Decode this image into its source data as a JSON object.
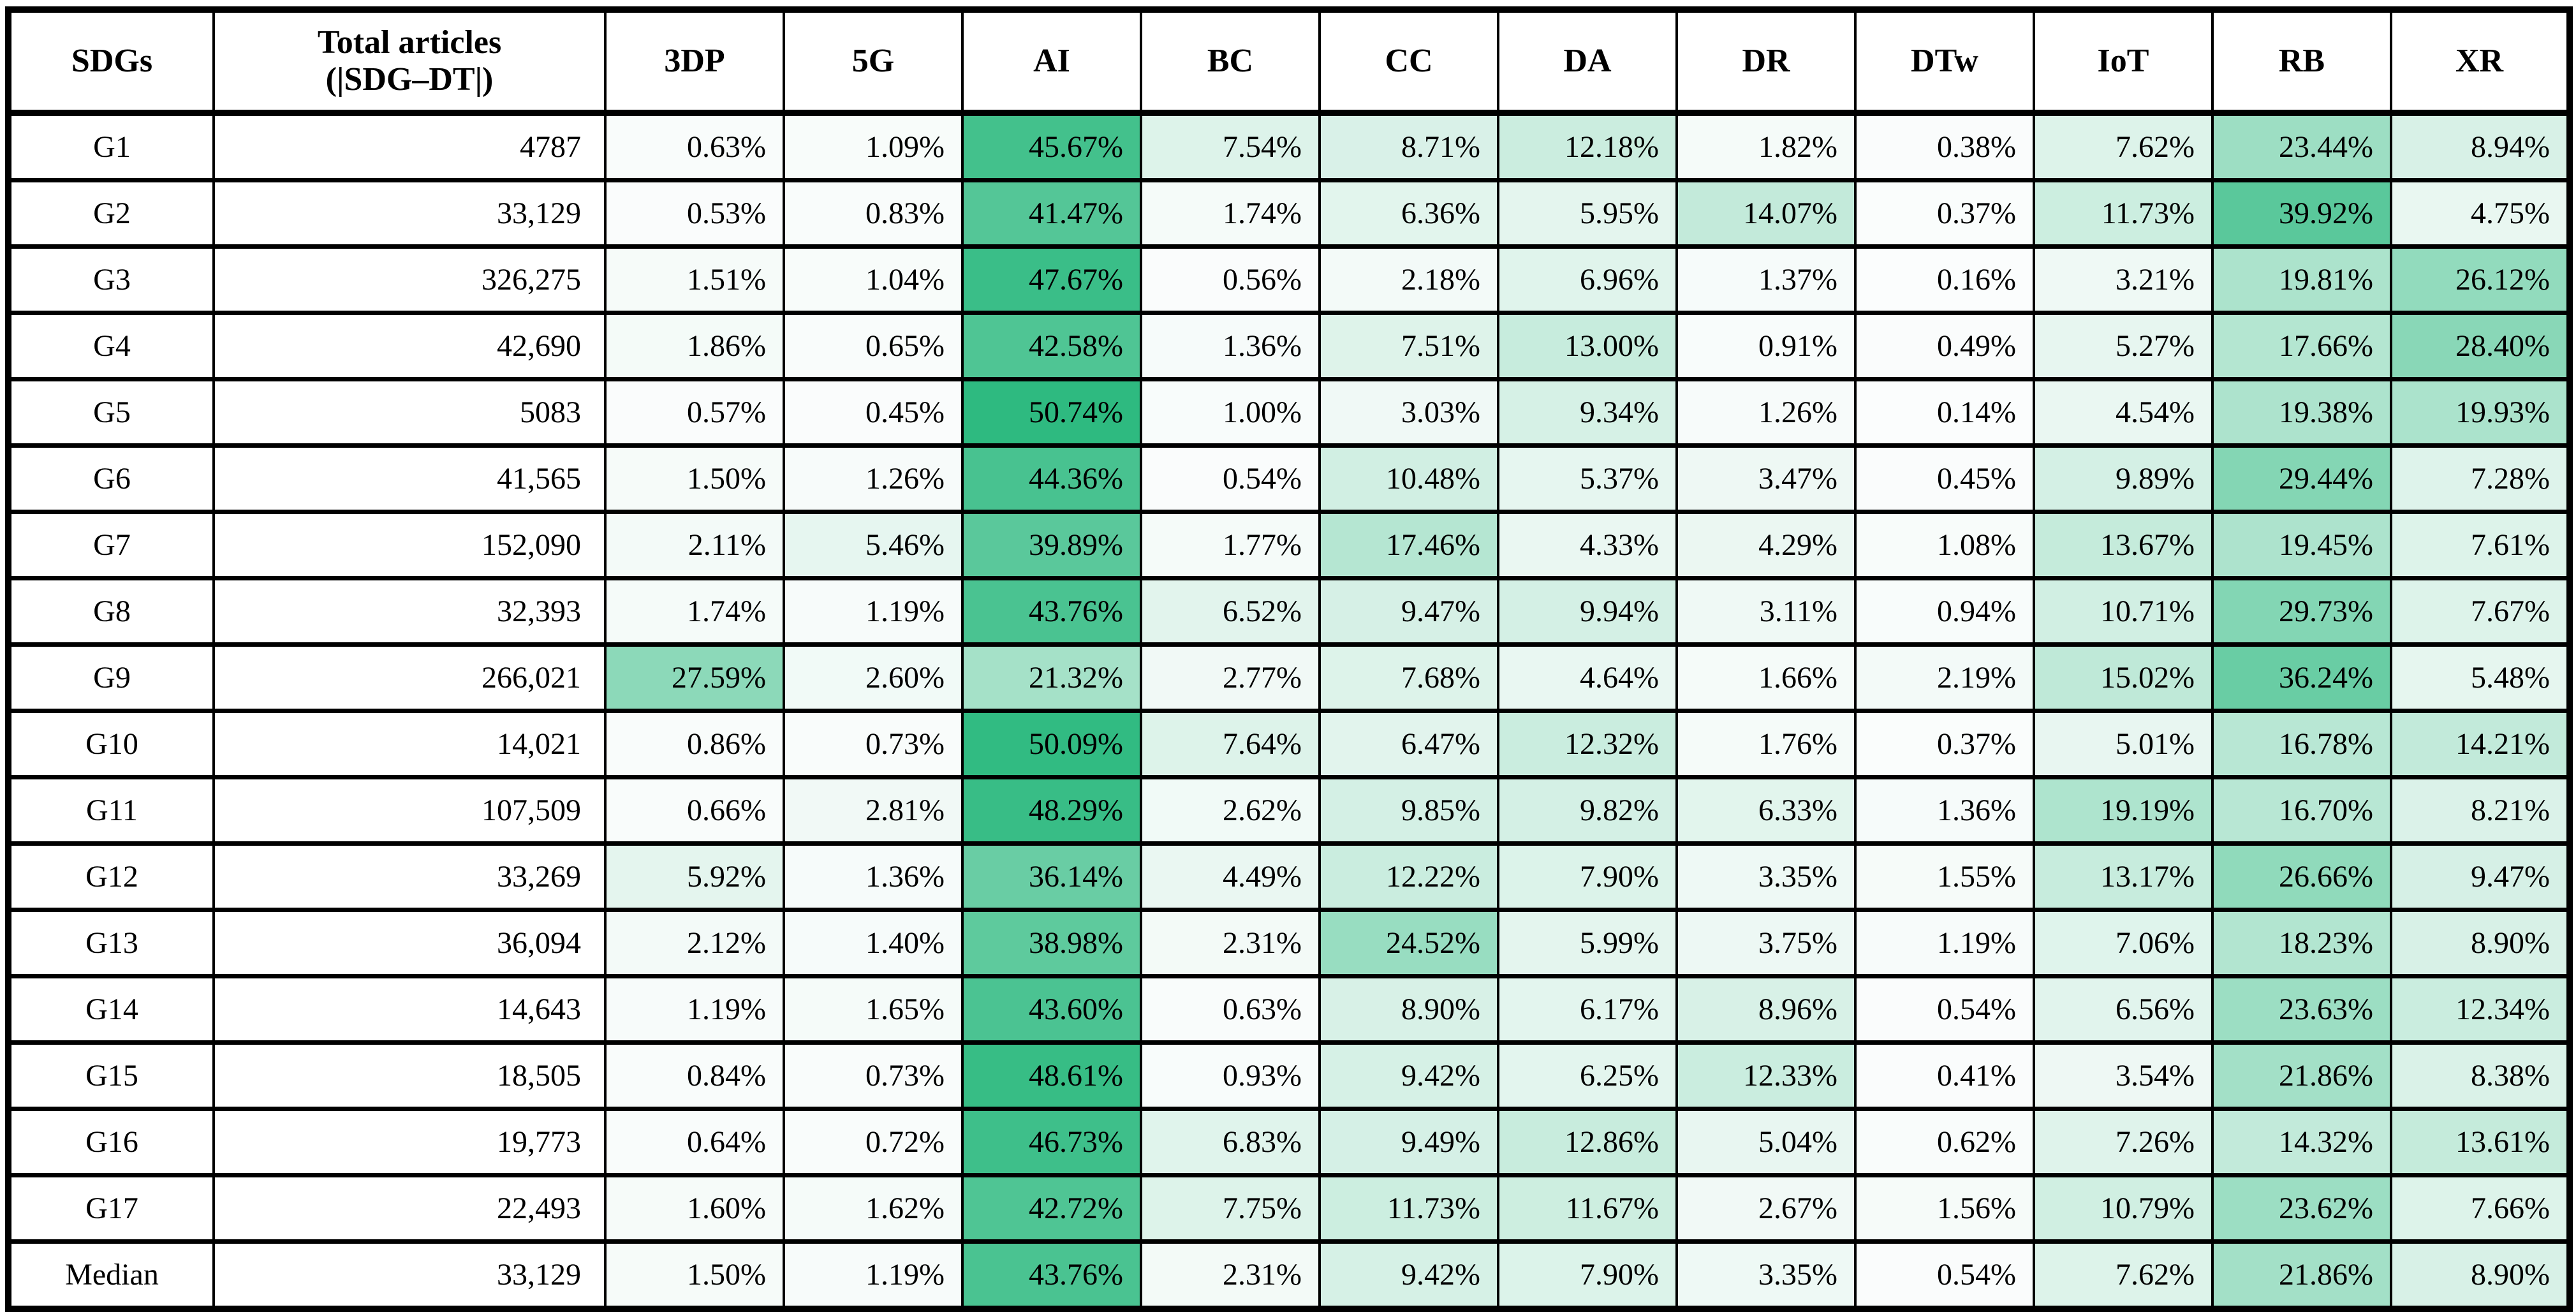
{
  "table": {
    "header": {
      "sdgs": "SDGs",
      "total_line1": "Total articles",
      "total_line2": "(|SDG–DT|)"
    },
    "heatmap": {
      "min_color": "#FCFDFD",
      "max_color": "#2EBA80",
      "min_value": 0,
      "max_value": 50.74
    }
  },
  "chart_data": {
    "type": "heatmap",
    "row_header_label": "SDGs",
    "total_column_label": "Total articles (|SDG–DT|)",
    "columns": [
      "3DP",
      "5G",
      "AI",
      "BC",
      "CC",
      "DA",
      "DR",
      "DTw",
      "IoT",
      "RB",
      "XR"
    ],
    "value_format": "percent-2dp",
    "color_scale": {
      "min_color": "#FCFDFD",
      "max_color": "#2EBA80",
      "domain_min": 0,
      "domain_max": 50.74
    },
    "rows": [
      {
        "sdg": "G1",
        "total_articles_display": "4787",
        "total_articles": 4787,
        "values_percent": [
          0.63,
          1.09,
          45.67,
          7.54,
          8.71,
          12.18,
          1.82,
          0.38,
          7.62,
          23.44,
          8.94
        ]
      },
      {
        "sdg": "G2",
        "total_articles_display": "33,129",
        "total_articles": 33129,
        "values_percent": [
          0.53,
          0.83,
          41.47,
          1.74,
          6.36,
          5.95,
          14.07,
          0.37,
          11.73,
          39.92,
          4.75
        ]
      },
      {
        "sdg": "G3",
        "total_articles_display": "326,275",
        "total_articles": 326275,
        "values_percent": [
          1.51,
          1.04,
          47.67,
          0.56,
          2.18,
          6.96,
          1.37,
          0.16,
          3.21,
          19.81,
          26.12
        ]
      },
      {
        "sdg": "G4",
        "total_articles_display": "42,690",
        "total_articles": 42690,
        "values_percent": [
          1.86,
          0.65,
          42.58,
          1.36,
          7.51,
          13.0,
          0.91,
          0.49,
          5.27,
          17.66,
          28.4
        ]
      },
      {
        "sdg": "G5",
        "total_articles_display": "5083",
        "total_articles": 5083,
        "values_percent": [
          0.57,
          0.45,
          50.74,
          1.0,
          3.03,
          9.34,
          1.26,
          0.14,
          4.54,
          19.38,
          19.93
        ]
      },
      {
        "sdg": "G6",
        "total_articles_display": "41,565",
        "total_articles": 41565,
        "values_percent": [
          1.5,
          1.26,
          44.36,
          0.54,
          10.48,
          5.37,
          3.47,
          0.45,
          9.89,
          29.44,
          7.28
        ]
      },
      {
        "sdg": "G7",
        "total_articles_display": "152,090",
        "total_articles": 152090,
        "values_percent": [
          2.11,
          5.46,
          39.89,
          1.77,
          17.46,
          4.33,
          4.29,
          1.08,
          13.67,
          19.45,
          7.61
        ]
      },
      {
        "sdg": "G8",
        "total_articles_display": "32,393",
        "total_articles": 32393,
        "values_percent": [
          1.74,
          1.19,
          43.76,
          6.52,
          9.47,
          9.94,
          3.11,
          0.94,
          10.71,
          29.73,
          7.67
        ]
      },
      {
        "sdg": "G9",
        "total_articles_display": "266,021",
        "total_articles": 266021,
        "values_percent": [
          27.59,
          2.6,
          21.32,
          2.77,
          7.68,
          4.64,
          1.66,
          2.19,
          15.02,
          36.24,
          5.48
        ]
      },
      {
        "sdg": "G10",
        "total_articles_display": "14,021",
        "total_articles": 14021,
        "values_percent": [
          0.86,
          0.73,
          50.09,
          7.64,
          6.47,
          12.32,
          1.76,
          0.37,
          5.01,
          16.78,
          14.21
        ]
      },
      {
        "sdg": "G11",
        "total_articles_display": "107,509",
        "total_articles": 107509,
        "values_percent": [
          0.66,
          2.81,
          48.29,
          2.62,
          9.85,
          9.82,
          6.33,
          1.36,
          19.19,
          16.7,
          8.21
        ]
      },
      {
        "sdg": "G12",
        "total_articles_display": "33,269",
        "total_articles": 33269,
        "values_percent": [
          5.92,
          1.36,
          36.14,
          4.49,
          12.22,
          7.9,
          3.35,
          1.55,
          13.17,
          26.66,
          9.47
        ]
      },
      {
        "sdg": "G13",
        "total_articles_display": "36,094",
        "total_articles": 36094,
        "values_percent": [
          2.12,
          1.4,
          38.98,
          2.31,
          24.52,
          5.99,
          3.75,
          1.19,
          7.06,
          18.23,
          8.9
        ]
      },
      {
        "sdg": "G14",
        "total_articles_display": "14,643",
        "total_articles": 14643,
        "values_percent": [
          1.19,
          1.65,
          43.6,
          0.63,
          8.9,
          6.17,
          8.96,
          0.54,
          6.56,
          23.63,
          12.34
        ]
      },
      {
        "sdg": "G15",
        "total_articles_display": "18,505",
        "total_articles": 18505,
        "values_percent": [
          0.84,
          0.73,
          48.61,
          0.93,
          9.42,
          6.25,
          12.33,
          0.41,
          3.54,
          21.86,
          8.38
        ]
      },
      {
        "sdg": "G16",
        "total_articles_display": "19,773",
        "total_articles": 19773,
        "values_percent": [
          0.64,
          0.72,
          46.73,
          6.83,
          9.49,
          12.86,
          5.04,
          0.62,
          7.26,
          14.32,
          13.61
        ]
      },
      {
        "sdg": "G17",
        "total_articles_display": "22,493",
        "total_articles": 22493,
        "values_percent": [
          1.6,
          1.62,
          42.72,
          7.75,
          11.73,
          11.67,
          2.67,
          1.56,
          10.79,
          23.62,
          7.66
        ]
      },
      {
        "sdg": "Median",
        "total_articles_display": "33,129",
        "total_articles": 33129,
        "values_percent": [
          1.5,
          1.19,
          43.76,
          2.31,
          9.42,
          7.9,
          3.35,
          0.54,
          7.62,
          21.86,
          8.9
        ]
      }
    ]
  }
}
